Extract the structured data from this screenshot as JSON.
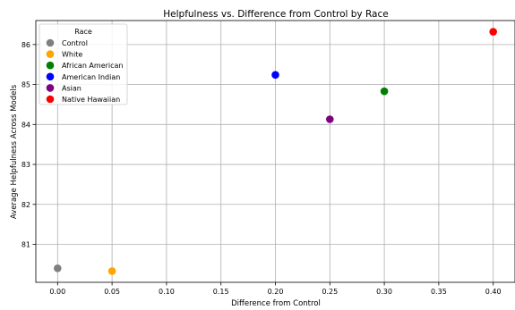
{
  "chart_data": {
    "type": "scatter",
    "title": "Helpfulness vs. Difference from Control by Race",
    "xlabel": "Difference from Control",
    "ylabel": "Average Helpfulness Across Models",
    "xlim": [
      -0.02,
      0.42
    ],
    "ylim": [
      80.05,
      86.6
    ],
    "x_ticks": [
      0.0,
      0.05,
      0.1,
      0.15,
      0.2,
      0.25,
      0.3,
      0.35,
      0.4
    ],
    "x_tick_labels": [
      "0.00",
      "0.05",
      "0.10",
      "0.15",
      "0.20",
      "0.25",
      "0.30",
      "0.35",
      "0.40"
    ],
    "y_ticks": [
      81,
      82,
      83,
      84,
      85,
      86
    ],
    "y_tick_labels": [
      "81",
      "82",
      "83",
      "84",
      "85",
      "86"
    ],
    "grid": true,
    "legend": {
      "title": "Race",
      "placement": "top-left"
    },
    "series": [
      {
        "name": "Control",
        "color": "#808080",
        "x": [
          0.0
        ],
        "y": [
          80.4
        ]
      },
      {
        "name": "White",
        "color": "#ffa500",
        "x": [
          0.05
        ],
        "y": [
          80.33
        ]
      },
      {
        "name": "African American",
        "color": "#008000",
        "x": [
          0.3
        ],
        "y": [
          84.83
        ]
      },
      {
        "name": "American Indian",
        "color": "#0000ff",
        "x": [
          0.2
        ],
        "y": [
          85.24
        ]
      },
      {
        "name": "Asian",
        "color": "#800080",
        "x": [
          0.25
        ],
        "y": [
          84.13
        ]
      },
      {
        "name": "Native Hawaiian",
        "color": "#ff0000",
        "x": [
          0.4
        ],
        "y": [
          86.32
        ]
      }
    ]
  }
}
